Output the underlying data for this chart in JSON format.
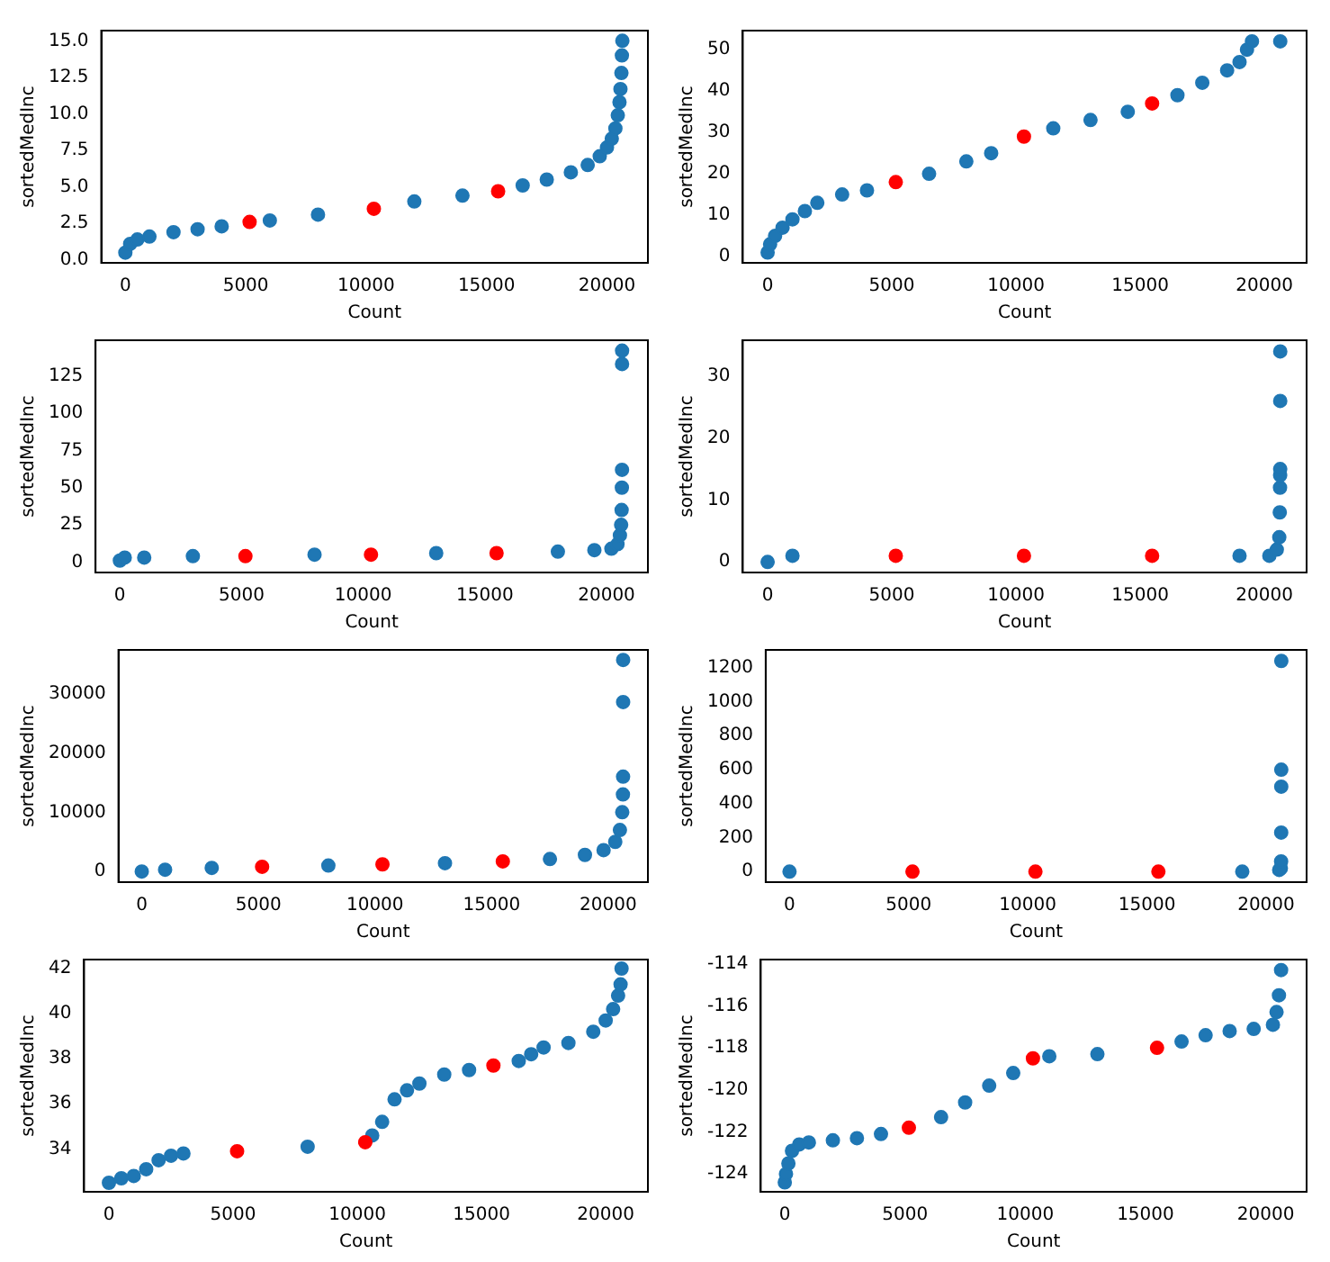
{
  "chart_data": [
    {
      "type": "scatter",
      "xlabel": "Count",
      "ylabel": "sortedMedInc",
      "xlim": [
        -1000,
        21700
      ],
      "xticks": [
        0,
        5000,
        10000,
        15000,
        20000
      ],
      "ylim": [
        -0.2,
        15.7
      ],
      "yticks": [
        {
          "value": 0,
          "label": "0.0"
        },
        {
          "value": 2.5,
          "label": "2.5"
        },
        {
          "value": 5,
          "label": "5.0"
        },
        {
          "value": 7.5,
          "label": "7.5"
        },
        {
          "value": 10,
          "label": "10.0"
        },
        {
          "value": 12.5,
          "label": "12.5"
        },
        {
          "value": 15,
          "label": "15.0"
        }
      ],
      "grid": false,
      "legend": false,
      "marker": "circle",
      "series": [
        {
          "color": "#1f77b4",
          "x": [
            0,
            200,
            500,
            1000,
            2000,
            3000,
            4000,
            6000,
            8000,
            12000,
            14000,
            16500,
            17500,
            18500,
            19200,
            19700,
            20000,
            20200,
            20350,
            20450,
            20520,
            20560,
            20600,
            20620,
            20639
          ],
          "values": [
            0.5,
            1.1,
            1.4,
            1.6,
            1.9,
            2.1,
            2.3,
            2.7,
            3.1,
            4.0,
            4.4,
            5.1,
            5.5,
            6.0,
            6.5,
            7.1,
            7.7,
            8.3,
            9.0,
            9.9,
            10.8,
            11.7,
            12.8,
            14.0,
            15.0
          ]
        },
        {
          "color": "#ff0000",
          "x": [
            5160,
            10320,
            15480
          ],
          "values": [
            2.6,
            3.5,
            4.7
          ]
        }
      ]
    },
    {
      "type": "scatter",
      "xlabel": "Count",
      "ylabel": "sortedMedInc",
      "xlim": [
        -1000,
        21700
      ],
      "xticks": [
        0,
        5000,
        10000,
        15000,
        20000
      ],
      "ylim": [
        -1.5,
        54.6
      ],
      "yticks": [
        0,
        10,
        20,
        30,
        40,
        50
      ],
      "grid": false,
      "legend": false,
      "marker": "circle",
      "series": [
        {
          "color": "#1f77b4",
          "x": [
            0,
            100,
            300,
            600,
            1000,
            1500,
            2000,
            3000,
            4000,
            6500,
            8000,
            9000,
            11500,
            13000,
            14500,
            16500,
            17500,
            18500,
            19000,
            19300,
            19500,
            20639
          ],
          "values": [
            1,
            3,
            5,
            7,
            9,
            11,
            13,
            15,
            16,
            20,
            23,
            25,
            31,
            33,
            35,
            39,
            42,
            45,
            47,
            50,
            52,
            52
          ]
        },
        {
          "color": "#ff0000",
          "x": [
            5160,
            10320,
            15480
          ],
          "values": [
            18,
            29,
            37
          ]
        }
      ]
    },
    {
      "type": "scatter",
      "xlabel": "Count",
      "ylabel": "sortedMedInc",
      "xlim": [
        -1000,
        21700
      ],
      "xticks": [
        0,
        5000,
        10000,
        15000,
        20000
      ],
      "ylim": [
        -7,
        149
      ],
      "yticks": [
        0,
        25,
        50,
        75,
        100,
        125
      ],
      "grid": false,
      "legend": false,
      "marker": "circle",
      "series": [
        {
          "color": "#1f77b4",
          "x": [
            0,
            200,
            1000,
            3000,
            8000,
            13000,
            18000,
            19500,
            20200,
            20450,
            20550,
            20600,
            20620,
            20630,
            20636,
            20638,
            20639
          ],
          "values": [
            1,
            3,
            3,
            4,
            5,
            6,
            7,
            8,
            9,
            12,
            18,
            25,
            35,
            50,
            62,
            133,
            142
          ]
        },
        {
          "color": "#ff0000",
          "x": [
            5160,
            10320,
            15480
          ],
          "values": [
            4,
            5,
            6
          ]
        }
      ]
    },
    {
      "type": "scatter",
      "xlabel": "Count",
      "ylabel": "sortedMedInc",
      "xlim": [
        -1000,
        21700
      ],
      "xticks": [
        0,
        5000,
        10000,
        15000,
        20000
      ],
      "ylim": [
        -1.7,
        35.8
      ],
      "yticks": [
        0,
        10,
        20,
        30
      ],
      "grid": false,
      "legend": false,
      "marker": "circle",
      "series": [
        {
          "color": "#1f77b4",
          "x": [
            0,
            1000,
            19000,
            20200,
            20500,
            20600,
            20620,
            20630,
            20635,
            20637,
            20638,
            20639
          ],
          "values": [
            0,
            1,
            1,
            1,
            2,
            4,
            8,
            12,
            14,
            15,
            26,
            34
          ]
        },
        {
          "color": "#ff0000",
          "x": [
            5160,
            10320,
            15480
          ],
          "values": [
            1,
            1,
            1
          ]
        }
      ]
    },
    {
      "type": "scatter",
      "xlabel": "Count",
      "ylabel": "sortedMedInc",
      "xlim": [
        -1000,
        21700
      ],
      "xticks": [
        0,
        5000,
        10000,
        15000,
        20000
      ],
      "ylim": [
        -1800,
        37400
      ],
      "yticks": [
        0,
        10000,
        20000,
        30000
      ],
      "grid": false,
      "legend": false,
      "marker": "circle",
      "series": [
        {
          "color": "#1f77b4",
          "x": [
            0,
            1000,
            3000,
            8000,
            13000,
            17500,
            19000,
            19800,
            20300,
            20500,
            20600,
            20630,
            20636,
            20638,
            20639
          ],
          "values": [
            0,
            300,
            600,
            1000,
            1400,
            2100,
            2800,
            3600,
            5000,
            7000,
            10000,
            13000,
            16000,
            28600,
            35700
          ]
        },
        {
          "color": "#ff0000",
          "x": [
            5160,
            10320,
            15480
          ],
          "values": [
            800,
            1200,
            1700
          ]
        }
      ]
    },
    {
      "type": "scatter",
      "xlabel": "Count",
      "ylabel": "sortedMedInc",
      "xlim": [
        -1000,
        21700
      ],
      "xticks": [
        0,
        5000,
        10000,
        15000,
        20000
      ],
      "ylim": [
        -62,
        1305
      ],
      "yticks": [
        0,
        200,
        400,
        600,
        800,
        1000,
        1200
      ],
      "grid": false,
      "legend": false,
      "marker": "circle",
      "series": [
        {
          "color": "#1f77b4",
          "x": [
            0,
            19000,
            20550,
            20620,
            20630,
            20634,
            20636,
            20637,
            20639
          ],
          "values": [
            0,
            0,
            10,
            20,
            60,
            230,
            500,
            600,
            1240
          ]
        },
        {
          "color": "#ff0000",
          "x": [
            5160,
            10320,
            15480
          ],
          "values": [
            0,
            0,
            0
          ]
        }
      ]
    },
    {
      "type": "scatter",
      "xlabel": "Count",
      "ylabel": "sortedMedInc",
      "xlim": [
        -1000,
        21700
      ],
      "xticks": [
        0,
        5000,
        10000,
        15000,
        20000
      ],
      "ylim": [
        32.1,
        42.4
      ],
      "yticks": [
        34,
        36,
        38,
        40,
        42
      ],
      "grid": false,
      "legend": false,
      "marker": "circle",
      "series": [
        {
          "color": "#1f77b4",
          "x": [
            0,
            500,
            1000,
            1500,
            2000,
            2500,
            3000,
            8000,
            10600,
            11000,
            11500,
            12000,
            12500,
            13500,
            14500,
            16500,
            17000,
            17500,
            18500,
            19500,
            20000,
            20300,
            20500,
            20600,
            20639
          ],
          "values": [
            32.5,
            32.7,
            32.8,
            33.1,
            33.5,
            33.7,
            33.8,
            34.1,
            34.6,
            35.2,
            36.2,
            36.6,
            36.9,
            37.3,
            37.5,
            37.9,
            38.2,
            38.5,
            38.7,
            39.2,
            39.7,
            40.2,
            40.8,
            41.3,
            42.0
          ]
        },
        {
          "color": "#ff0000",
          "x": [
            5160,
            10320,
            15480
          ],
          "values": [
            33.9,
            34.3,
            37.7
          ]
        }
      ]
    },
    {
      "type": "scatter",
      "xlabel": "Count",
      "ylabel": "sortedMedInc",
      "xlim": [
        -1000,
        21700
      ],
      "xticks": [
        0,
        5000,
        10000,
        15000,
        20000
      ],
      "ylim": [
        -124.85,
        -113.8
      ],
      "yticks": [
        -124,
        -122,
        -120,
        -118,
        -116,
        -114
      ],
      "grid": false,
      "legend": false,
      "marker": "circle",
      "series": [
        {
          "color": "#1f77b4",
          "x": [
            0,
            50,
            150,
            300,
            600,
            1000,
            2000,
            3000,
            4000,
            6500,
            7500,
            8500,
            9500,
            11000,
            13000,
            16500,
            17500,
            18500,
            19500,
            20300,
            20450,
            20550,
            20639
          ],
          "values": [
            -124.4,
            -124.0,
            -123.5,
            -122.9,
            -122.6,
            -122.5,
            -122.4,
            -122.3,
            -122.1,
            -121.3,
            -120.6,
            -119.8,
            -119.2,
            -118.4,
            -118.3,
            -117.7,
            -117.4,
            -117.2,
            -117.1,
            -116.9,
            -116.3,
            -115.5,
            -114.3
          ]
        },
        {
          "color": "#ff0000",
          "x": [
            5160,
            10320,
            15480
          ],
          "values": [
            -121.8,
            -118.5,
            -118.0
          ]
        }
      ]
    }
  ]
}
